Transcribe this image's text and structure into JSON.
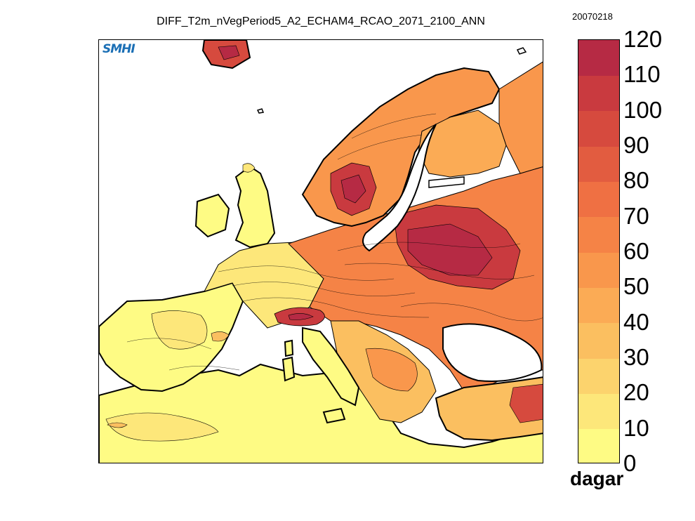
{
  "title": "DIFF_T2m_nVegPeriod5_A2_ECHAM4_RCAO_2071_2100_ANN",
  "date_stamp": "20070218",
  "logo_text": "SMHI",
  "colorbar": {
    "unit": "dagar",
    "ticks": [
      "0",
      "10",
      "20",
      "30",
      "40",
      "50",
      "60",
      "70",
      "80",
      "90",
      "100",
      "110",
      "120"
    ],
    "colors": [
      "#fefb84",
      "#fde77a",
      "#fcd36d",
      "#fbbf60",
      "#fbab55",
      "#f9974c",
      "#f58346",
      "#ef7043",
      "#e25c40",
      "#d64a3e",
      "#c93a3f",
      "#b62a44"
    ]
  },
  "map": {
    "region": "Europe",
    "colors": {
      "ocean": "#ffffff",
      "low": "#fefb84",
      "mid": "#fbab55",
      "high": "#d64a3e",
      "peak": "#b62a44",
      "coast": "#000000"
    }
  }
}
